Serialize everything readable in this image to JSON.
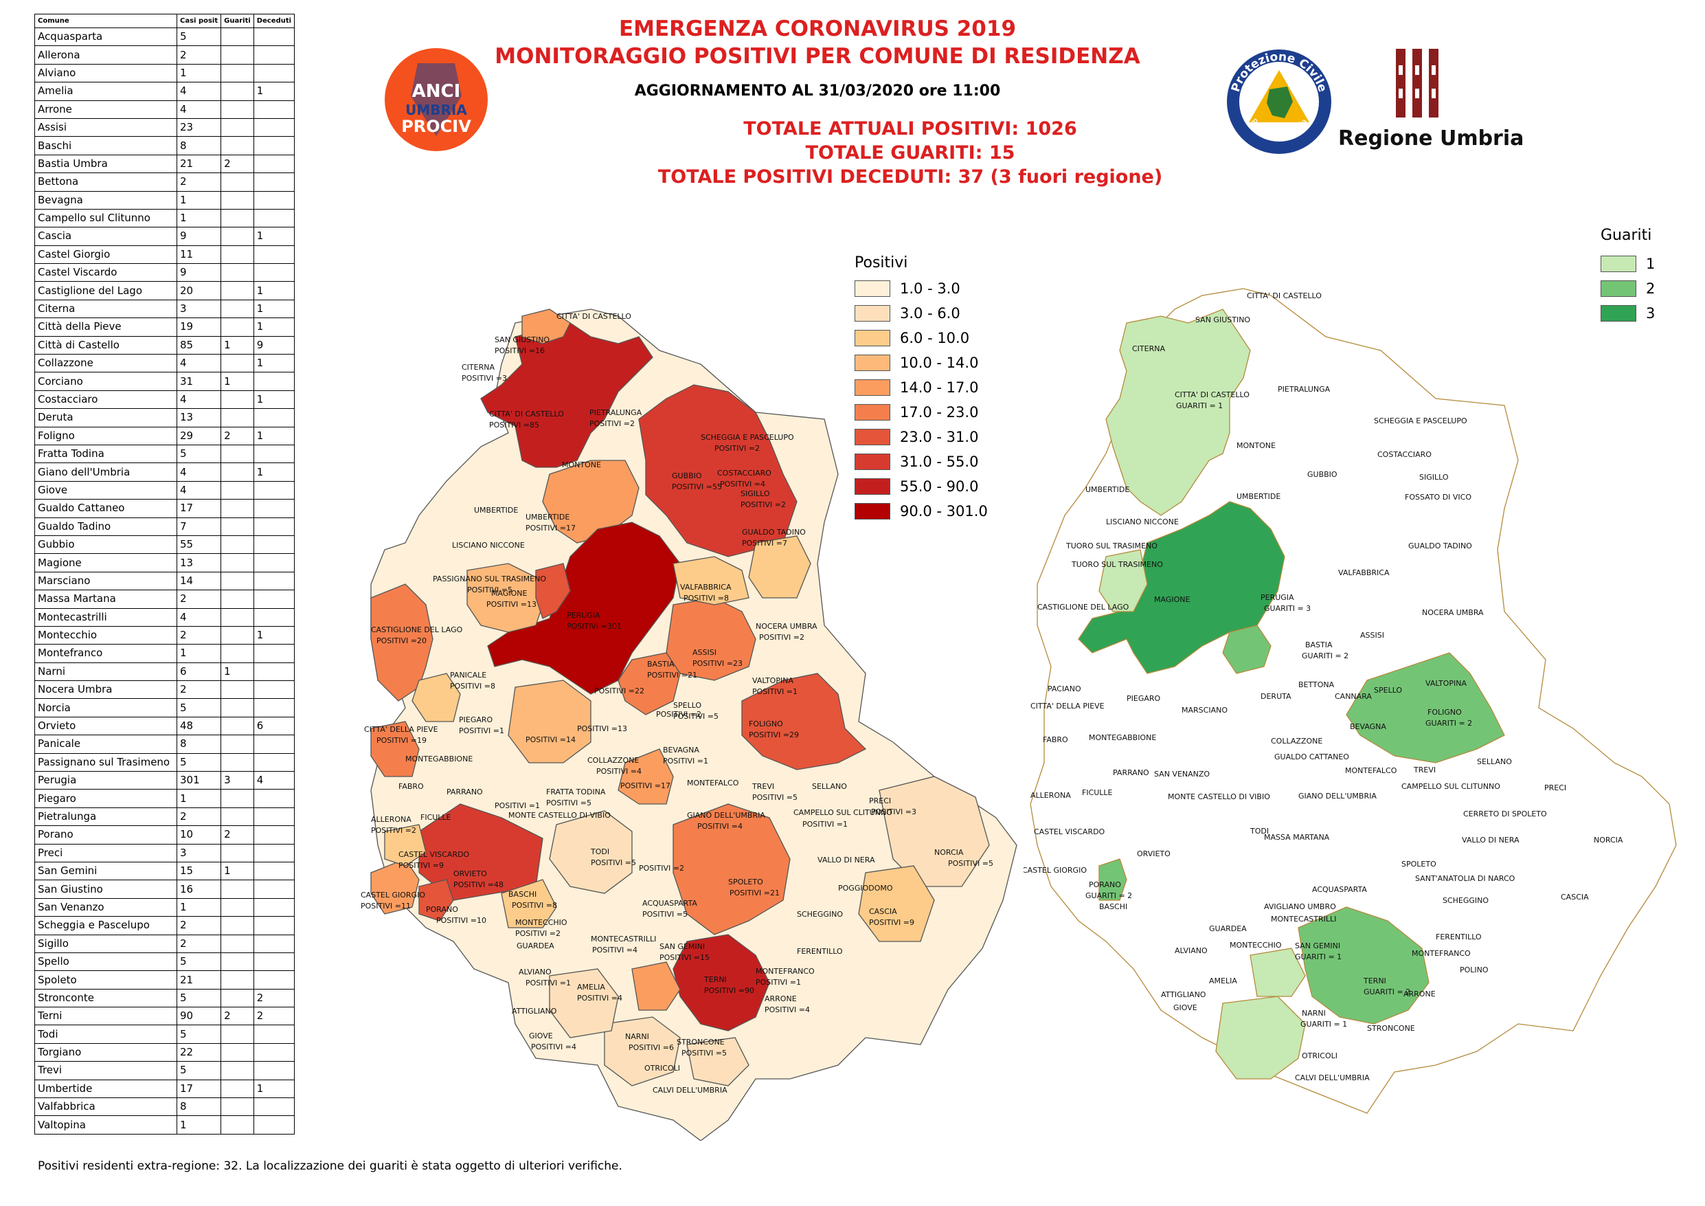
{
  "title_line1": "EMERGENZA CORONAVIRUS 2019",
  "title_line2": "MONITORAGGIO POSITIVI PER COMUNE DI RESIDENZA",
  "update": "AGGIORNAMENTO AL 31/03/2020 ore 11:00",
  "total_positives": "TOTALE ATTUALI POSITIVI: 1026",
  "total_recovered": "TOTALE GUARITI:  15",
  "total_deceased": "TOTALE POSITIVI DECEDUTI: 37 (3 fuori regione)",
  "footnote": "Positivi residenti extra-regione: 32. La localizzazione dei guariti è stata oggetto di ulteriori verifiche.",
  "logos": {
    "anci_line1": "ANCI",
    "anci_line2": "UMBRIA",
    "anci_line3": "PROCIV",
    "protezione_civile_top": "Protezione Civile",
    "protezione_civile_bottom": "Regione Umbria",
    "regione_umbria": "Regione Umbria"
  },
  "table": {
    "headers": [
      "Comune",
      "Casi posit",
      "Guariti",
      "Deceduti"
    ],
    "rows": [
      [
        "Acquasparta",
        "5",
        "",
        ""
      ],
      [
        "Allerona",
        "2",
        "",
        ""
      ],
      [
        "Alviano",
        "1",
        "",
        ""
      ],
      [
        "Amelia",
        "4",
        "",
        "1"
      ],
      [
        "Arrone",
        "4",
        "",
        ""
      ],
      [
        "Assisi",
        "23",
        "",
        ""
      ],
      [
        "Baschi",
        "8",
        "",
        ""
      ],
      [
        "Bastia Umbra",
        "21",
        "2",
        ""
      ],
      [
        "Bettona",
        "2",
        "",
        ""
      ],
      [
        "Bevagna",
        "1",
        "",
        ""
      ],
      [
        "Campello sul Clitunno",
        "1",
        "",
        ""
      ],
      [
        "Cascia",
        "9",
        "",
        "1"
      ],
      [
        "Castel Giorgio",
        "11",
        "",
        ""
      ],
      [
        "Castel Viscardo",
        "9",
        "",
        ""
      ],
      [
        "Castiglione del Lago",
        "20",
        "",
        "1"
      ],
      [
        "Citerna",
        "3",
        "",
        "1"
      ],
      [
        "Città  della Pieve",
        "19",
        "",
        "1"
      ],
      [
        "Città  di Castello",
        "85",
        "1",
        "9"
      ],
      [
        "Collazzone",
        "4",
        "",
        "1"
      ],
      [
        "Corciano",
        "31",
        "1",
        ""
      ],
      [
        "Costacciaro",
        "4",
        "",
        "1"
      ],
      [
        "Deruta",
        "13",
        "",
        ""
      ],
      [
        "Foligno",
        "29",
        "2",
        "1"
      ],
      [
        "Fratta Todina",
        "5",
        "",
        ""
      ],
      [
        "Giano dell'Umbria",
        "4",
        "",
        "1"
      ],
      [
        "Giove",
        "4",
        "",
        ""
      ],
      [
        "Gualdo Cattaneo",
        "17",
        "",
        ""
      ],
      [
        "Gualdo Tadino",
        "7",
        "",
        ""
      ],
      [
        "Gubbio",
        "55",
        "",
        ""
      ],
      [
        "Magione",
        "13",
        "",
        ""
      ],
      [
        "Marsciano",
        "14",
        "",
        ""
      ],
      [
        "Massa Martana",
        "2",
        "",
        ""
      ],
      [
        "Montecastrilli",
        "4",
        "",
        ""
      ],
      [
        "Montecchio",
        "2",
        "",
        "1"
      ],
      [
        "Montefranco",
        "1",
        "",
        ""
      ],
      [
        "Narni",
        "6",
        "1",
        ""
      ],
      [
        "Nocera Umbra",
        "2",
        "",
        ""
      ],
      [
        "Norcia",
        "5",
        "",
        ""
      ],
      [
        "Orvieto",
        "48",
        "",
        "6"
      ],
      [
        "Panicale",
        "8",
        "",
        ""
      ],
      [
        "Passignano sul Trasimeno",
        "5",
        "",
        ""
      ],
      [
        "Perugia",
        "301",
        "3",
        "4"
      ],
      [
        "Piegaro",
        "1",
        "",
        ""
      ],
      [
        "Pietralunga",
        "2",
        "",
        ""
      ],
      [
        "Porano",
        "10",
        "2",
        ""
      ],
      [
        "Preci",
        "3",
        "",
        ""
      ],
      [
        "San Gemini",
        "15",
        "1",
        ""
      ],
      [
        "San Giustino",
        "16",
        "",
        ""
      ],
      [
        "San Venanzo",
        "1",
        "",
        ""
      ],
      [
        "Scheggia e Pascelupo",
        "2",
        "",
        ""
      ],
      [
        "Sigillo",
        "2",
        "",
        ""
      ],
      [
        "Spello",
        "5",
        "",
        ""
      ],
      [
        "Spoleto",
        "21",
        "",
        ""
      ],
      [
        "Stronconte",
        "5",
        "",
        "2"
      ],
      [
        "Terni",
        "90",
        "2",
        "2"
      ],
      [
        "Todi",
        "5",
        "",
        ""
      ],
      [
        "Torgiano",
        "22",
        "",
        ""
      ],
      [
        "Trevi",
        "5",
        "",
        ""
      ],
      [
        "Umbertide",
        "17",
        "",
        "1"
      ],
      [
        "Valfabbrica",
        "8",
        "",
        ""
      ],
      [
        "Valtopina",
        "1",
        "",
        ""
      ]
    ]
  },
  "legend_positivi": {
    "title": "Positivi",
    "items": [
      {
        "label": "1.0 - 3.0",
        "color": "#fef0d9"
      },
      {
        "label": "3.0 - 6.0",
        "color": "#fde0bb"
      },
      {
        "label": "6.0 - 10.0",
        "color": "#fdcc8a"
      },
      {
        "label": "10.0 - 14.0",
        "color": "#fdb97a"
      },
      {
        "label": "14.0 - 17.0",
        "color": "#fc9d60"
      },
      {
        "label": "17.0 - 23.0",
        "color": "#f47f4d"
      },
      {
        "label": "23.0 - 31.0",
        "color": "#e4553a"
      },
      {
        "label": "31.0 - 55.0",
        "color": "#d73b2f"
      },
      {
        "label": "55.0 - 90.0",
        "color": "#c41f1f"
      },
      {
        "label": "90.0 - 301.0",
        "color": "#b30000"
      }
    ]
  },
  "legend_guariti": {
    "title": "Guariti",
    "items": [
      {
        "label": "1",
        "color": "#c7e9b4"
      },
      {
        "label": "2",
        "color": "#74c476"
      },
      {
        "label": "3",
        "color": "#31a354"
      }
    ]
  },
  "map_left_labels": [
    "CITTA' DI CASTELLO",
    "SAN GIUSTINO",
    "POSITIVI =16",
    "CITERNA",
    "POSITIVI =3",
    "CITTA' DI CASTELLO",
    "POSITIVI =85",
    "PIETRALUNGA",
    "POSITIVI =2",
    "SCHEGGIA E PASCELUPO",
    "POSITIVI =2",
    "MONTONE",
    "COSTACCIARO",
    "POSITIVI =4",
    "SIGILLO",
    "POSITIVI =2",
    "GUBBIO",
    "POSITIVI =55",
    "UMBERTIDE",
    "UMBERTIDE",
    "POSITIVI =17",
    "GUALDO TADINO",
    "POSITIVI =7",
    "LISCIANO NICCONE",
    "PASSIGNANO SUL TRASIMENO",
    "POSITIVI =5",
    "VALFABBRICA",
    "POSITIVI =8",
    "PERUGIA",
    "POSITIVI =301",
    "MAGIONE",
    "POSITIVI =13",
    "CASTIGLIONE DEL LAGO",
    "POSITIVI =20",
    "NOCERA UMBRA",
    "POSITIVI =2",
    "ASSISI",
    "POSITIVI =23",
    "BASTIA",
    "POSITIVI =21",
    "PANICALE",
    "POSITIVI =8",
    "POSITIVI =22",
    "VALTOPINA",
    "POSITIVI =1",
    "SPELLO",
    "POSITIVI =5",
    "FOLIGNO",
    "POSITIVI =29",
    "CITTA' DELLA PIEVE",
    "POSITIVI =19",
    "PIEGARO",
    "POSITIVI =1",
    "POSITIVI =2",
    "BEVAGNA",
    "POSITIVI =1",
    "POSITIVI =14",
    "POSITIVI =13",
    "COLLAZZONE",
    "POSITIVI =4",
    "POSITIVI =17",
    "MONTEGABBIONE",
    "FABRO",
    "PARRANO",
    "MONTEFALCO",
    "TREVI",
    "POSITIVI =5",
    "SELLANO",
    "PRECI",
    "POSITIVI =3",
    "FRATTA TODINA",
    "POSITIVI =5",
    "POSITIVI =1",
    "CAMPELLO SUL CLITUNNO",
    "POSITIVI =1",
    "ALLERONA",
    "POSITIVI =2",
    "FICULLE",
    "MONTE CASTELLO DI VIBIO",
    "GIANO DELL'UMBRIA",
    "POSITIVI =4",
    "CASTEL VISCARDO",
    "POSITIVI =9",
    "TODI",
    "POSITIVI =5",
    "POSITIVI =2",
    "VALLO DI NERA",
    "NORCIA",
    "POSITIVI =5",
    "ORVIETO",
    "POSITIVI =48",
    "SPOLETO",
    "POSITIVI =21",
    "POGGIODOMO",
    "CASTEL GIORGIO",
    "POSITIVI =11",
    "BASCHI",
    "POSITIVI =8",
    "PORANO",
    "POSITIVI =10",
    "ACQUASPARTA",
    "POSITIVI =5",
    "SCHEGGINO",
    "CASCIA",
    "POSITIVI =9",
    "MONTECCHIO",
    "POSITIVI =2",
    "GUARDEA",
    "MONTECASTRILLI",
    "POSITIVI =4",
    "SAN GEMINI",
    "POSITIVI =15",
    "FERENTILLO",
    "ALVIANO",
    "POSITIVI =1",
    "AMELIA",
    "POSITIVI =4",
    "TERNI",
    "POSITIVI =90",
    "MONTEFRANCO",
    "POSITIVI =1",
    "ARRONE",
    "POSITIVI =4",
    "ATTIGLIANO",
    "GIOVE",
    "POSITIVI =4",
    "NARNI",
    "POSITIVI =6",
    "STRONCONE",
    "POSITIVI =5",
    "OTRICOLI",
    "CALVI DELL'UMBRIA"
  ],
  "map_right_labels": [
    "CITTA' DI CASTELLO",
    "SAN GIUSTINO",
    "CITERNA",
    "CITTA' DI CASTELLO",
    "GUARITI = 1",
    "PIETRALUNGA",
    "SCHEGGIA E PASCELUPO",
    "MONTONE",
    "COSTACCIARO",
    "GUBBIO",
    "SIGILLO",
    "UMBERTIDE",
    "FOSSATO DI VICO",
    "UMBERTIDE",
    "LISCIANO NICCONE",
    "TUORO SUL TRASIMENO",
    "TUORO SUL TRASIMENO",
    "GUALDO TADINO",
    "VALFABBRICA",
    "MAGIONE",
    "PERUGIA",
    "GUARITI = 3",
    "CASTIGLIONE DEL LAGO",
    "NOCERA UMBRA",
    "ASSISI",
    "BASTIA",
    "GUARITI = 2",
    "VALTOPINA",
    "PACIANO",
    "BETTONA",
    "SPELLO",
    "PIEGARO",
    "CANNARA",
    "FOLIGNO",
    "GUARITI = 2",
    "DERUTA",
    "CITTA' DELLA PIEVE",
    "MARSCIANO",
    "BEVAGNA",
    "FABRO",
    "MONTEGABBIONE",
    "COLLAZZONE",
    "TREVI",
    "SELLANO",
    "GUALDO CATTANEO",
    "MONTEFALCO",
    "PARRANO",
    "SAN VENANZO",
    "CAMPELLO SUL CLITUNNO",
    "PRECI",
    "ALLERONA",
    "FICULLE",
    "MONTE CASTELLO DI VIBIO",
    "GIANO DELL'UMBRIA",
    "CERRETO DI SPOLETO",
    "TODI",
    "CASTEL VISCARDO",
    "MASSA MARTANA",
    "VALLO DI NERA",
    "NORCIA",
    "ORVIETO",
    "SPOLETO",
    "CASTEL GIORGIO",
    "SANT'ANATOLIA DI NARCO",
    "BASCHI",
    "PORANO",
    "GUARITI = 2",
    "CASCIA",
    "ACQUASPARTA",
    "AVIGLIANO UMBRO",
    "SCHEGGINO",
    "MONTECASTRILLI",
    "SAN GEMINI",
    "GUARITI = 1",
    "FERENTILLO",
    "GUARDEA",
    "MONTECCHIO",
    "MONTEFRANCO",
    "ALVIANO",
    "POLINO",
    "TERNI",
    "GUARITI = 2",
    "AMELIA",
    "ARRONE",
    "ATTIGLIANO",
    "GIOVE",
    "NARNI",
    "GUARITI = 1",
    "STRONCONE",
    "OTRICOLI",
    "CALVI DELL'UMBRIA"
  ]
}
